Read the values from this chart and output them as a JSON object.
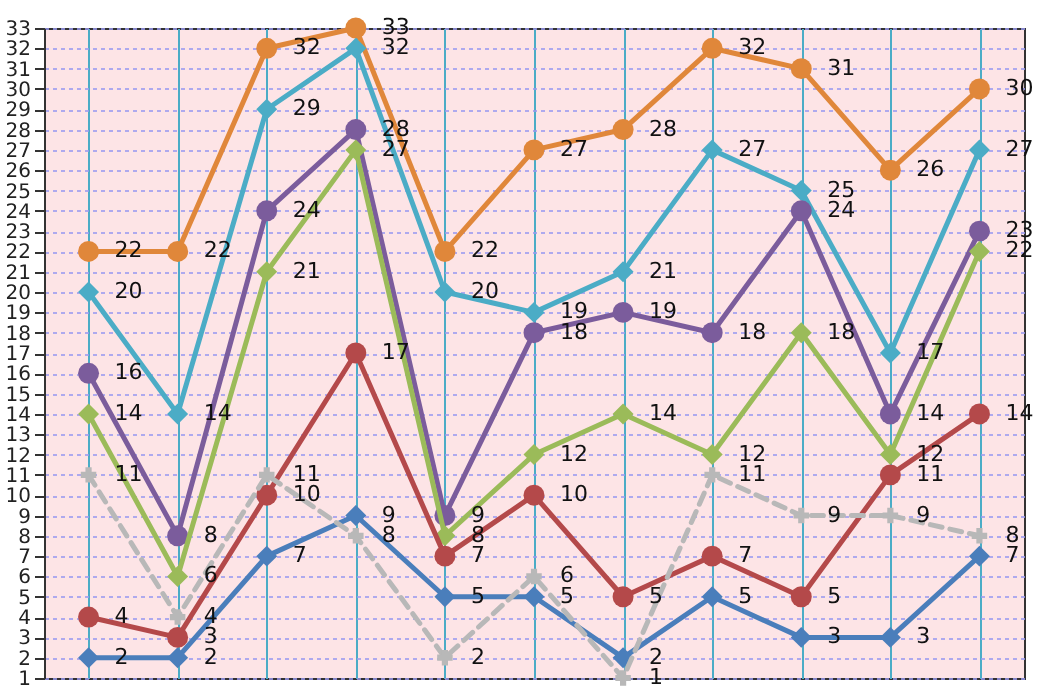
{
  "chart_data": {
    "type": "line",
    "categories": [
      null,
      null,
      null,
      null,
      null,
      null,
      null,
      null,
      null,
      null,
      null
    ],
    "ylim": [
      1,
      33
    ],
    "yticks": [
      1,
      2,
      3,
      4,
      5,
      6,
      7,
      8,
      9,
      10,
      11,
      12,
      13,
      14,
      15,
      16,
      17,
      18,
      19,
      20,
      21,
      22,
      23,
      24,
      25,
      26,
      27,
      28,
      29,
      30,
      31,
      32,
      33
    ],
    "grid": true,
    "tick_labels": "y",
    "data_labels": true,
    "series": [
      {
        "color": "#4a7ebb",
        "marker": "diamond",
        "values": [
          2,
          2,
          7,
          9,
          5,
          5,
          2,
          5,
          3,
          3,
          7
        ]
      },
      {
        "color": "#e0873a",
        "marker": "circle",
        "values": [
          22,
          22,
          32,
          33,
          22,
          27,
          28,
          32,
          31,
          26,
          30
        ]
      },
      {
        "color": "#4bacc6",
        "marker": "diamond",
        "values": [
          20,
          14,
          29,
          32,
          20,
          19,
          21,
          27,
          25,
          17,
          27
        ]
      },
      {
        "color": "#7b5c9c",
        "marker": "circle",
        "values": [
          16,
          8,
          24,
          28,
          9,
          18,
          19,
          18,
          24,
          14,
          23
        ]
      },
      {
        "color": "#9bbb59",
        "marker": "diamond",
        "values": [
          14,
          6,
          21,
          27,
          8,
          12,
          14,
          12,
          18,
          12,
          22
        ]
      },
      {
        "color": "#b4494a",
        "marker": "circle",
        "values": [
          4,
          3,
          10,
          17,
          7,
          10,
          5,
          7,
          5,
          11,
          14
        ]
      },
      {
        "color": "#b8b8b8",
        "marker": "cross",
        "line_style": "dashed",
        "values": [
          11,
          4,
          11,
          8,
          2,
          6,
          1,
          11,
          9,
          9,
          8
        ]
      }
    ]
  }
}
